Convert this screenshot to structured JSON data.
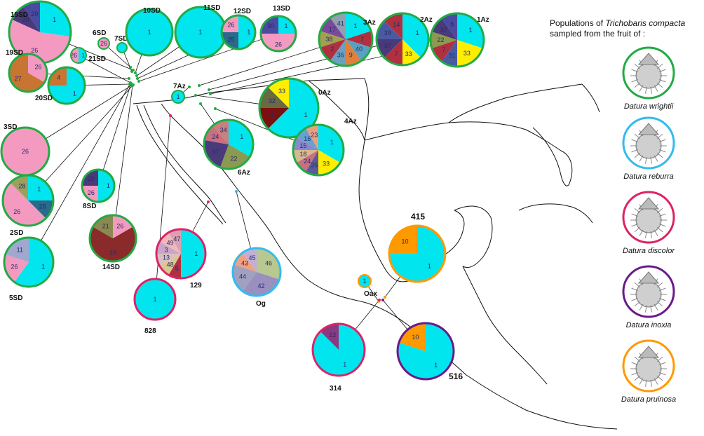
{
  "legend": {
    "title_prefix": "Populations of",
    "title_species": "Trichobaris compacta",
    "title_suffix": "sampled from the fruit of :",
    "hosts": [
      {
        "name": "Datura wrightii",
        "color": "#22aa44"
      },
      {
        "name": "Datura  reburra",
        "color": "#33bbee"
      },
      {
        "name": "Datura  discolor",
        "color": "#dd2266"
      },
      {
        "name": "Datura  inoxia",
        "color": "#6a1a8a"
      },
      {
        "name": "Datura pruinosa",
        "color": "#ff9900"
      }
    ]
  },
  "haplotype_colors": {
    "1": "#00e5ee",
    "2": "#b03040",
    "3": "#c9a6c9",
    "4": "#c87533",
    "5": "#b03040",
    "6": "#7a1010",
    "7": "#b03040",
    "8": "#4a4aa0",
    "9": "#e0803a",
    "10": "#ff9900",
    "11": "#a0a8d0",
    "12": "#8a3a80",
    "13": "#d8c0c0",
    "14": "#b03040",
    "15": "#8888cc",
    "16": "#6aa0d0",
    "17": "#7a4a9a",
    "18": "#d8b890",
    "19": "#8b2a2a",
    "20": "#4a3a7a",
    "21": "#8a8a50",
    "22": "#8a9a50",
    "23": "#e8a080",
    "24": "#c87080",
    "25": "#2a6a8a",
    "26": "#f49ac1",
    "27": "#c87533",
    "28": "#9aa060",
    "29": "#4a4aa0",
    "30": "#4a4aa0",
    "31": "#4a5aa0",
    "32": "#6a6a40",
    "33": "#ffee00",
    "34": "#c88080",
    "35": "#5a5a9a",
    "36": "#6aa0c0",
    "37": "#4a3a7a",
    "38": "#a0a050",
    "39": "#4a5aa0",
    "40": "#5aa0c0",
    "41": "#90a0b0",
    "42": "#9a90c0",
    "43": "#f0a080",
    "44": "#a0a0c0",
    "45": "#c0b0d8",
    "46": "#b8c890",
    "47": "#d8a0b0",
    "48": "#d8c890",
    "49": "#f0b8b8"
  },
  "populations": [
    {
      "id": "15SD",
      "host": "Datura wrightii",
      "haplotypes": [
        {
          "h": "1",
          "n": 3
        },
        {
          "h": "26",
          "n": 6
        },
        {
          "h": "20",
          "n": 1
        },
        {
          "h": "29",
          "n": 1
        }
      ]
    },
    {
      "id": "6SD",
      "host": "Datura wrightii",
      "haplotypes": [
        {
          "h": "26",
          "n": 1
        }
      ]
    },
    {
      "id": "7SD",
      "host": "Datura wrightii",
      "haplotypes": [
        {
          "h": "1",
          "n": 1
        }
      ]
    },
    {
      "id": "10SD",
      "host": "Datura wrightii",
      "haplotypes": [
        {
          "h": "1",
          "n": 1
        }
      ]
    },
    {
      "id": "11SD",
      "host": "Datura wrightii",
      "haplotypes": [
        {
          "h": "1",
          "n": 1
        }
      ]
    },
    {
      "id": "12SD",
      "host": "Datura wrightii",
      "haplotypes": [
        {
          "h": "1",
          "n": 2
        },
        {
          "h": "25",
          "n": 1
        },
        {
          "h": "26",
          "n": 1
        }
      ]
    },
    {
      "id": "13SD",
      "host": "Datura wrightii",
      "haplotypes": [
        {
          "h": "1",
          "n": 1
        },
        {
          "h": "26",
          "n": 2
        },
        {
          "h": "30",
          "n": 1
        }
      ]
    },
    {
      "id": "19SD",
      "host": "Datura wrightii",
      "haplotypes": [
        {
          "h": "26",
          "n": 1
        },
        {
          "h": "27",
          "n": 2
        }
      ]
    },
    {
      "id": "21SD",
      "host": "Datura wrightii",
      "haplotypes": [
        {
          "h": "1",
          "n": 1
        },
        {
          "h": "26",
          "n": 1
        }
      ]
    },
    {
      "id": "20SD",
      "host": "Datura wrightii",
      "haplotypes": [
        {
          "h": "1",
          "n": 3
        },
        {
          "h": "4",
          "n": 1
        }
      ]
    },
    {
      "id": "3SD",
      "host": "Datura wrightii",
      "haplotypes": [
        {
          "h": "26",
          "n": 1
        }
      ]
    },
    {
      "id": "2SD",
      "host": "Datura wrightii",
      "haplotypes": [
        {
          "h": "1",
          "n": 2
        },
        {
          "h": "25",
          "n": 1
        },
        {
          "h": "26",
          "n": 4
        },
        {
          "h": "28",
          "n": 1
        }
      ]
    },
    {
      "id": "8SD",
      "host": "Datura wrightii",
      "haplotypes": [
        {
          "h": "1",
          "n": 2
        },
        {
          "h": "26",
          "n": 1
        },
        {
          "h": "20",
          "n": 1
        }
      ]
    },
    {
      "id": "5SD",
      "host": "Datura wrightii",
      "haplotypes": [
        {
          "h": "1",
          "n": 3
        },
        {
          "h": "26",
          "n": 1
        },
        {
          "h": "11",
          "n": 1
        }
      ]
    },
    {
      "id": "14SD",
      "host": "Datura wrightii",
      "haplotypes": [
        {
          "h": "26",
          "n": 1
        },
        {
          "h": "19",
          "n": 4
        },
        {
          "h": "21",
          "n": 1
        }
      ]
    },
    {
      "id": "3Az",
      "host": "Datura wrightii",
      "haplotypes": [
        {
          "h": "1",
          "n": 2
        },
        {
          "h": "7",
          "n": 1
        },
        {
          "h": "40",
          "n": 1
        },
        {
          "h": "9",
          "n": 1
        },
        {
          "h": "36",
          "n": 1
        },
        {
          "h": "2",
          "n": 1
        },
        {
          "h": "38",
          "n": 1
        },
        {
          "h": "17",
          "n": 1
        },
        {
          "h": "41",
          "n": 1
        }
      ]
    },
    {
      "id": "2Az",
      "host": "Datura wrightii",
      "haplotypes": [
        {
          "h": "1",
          "n": 3
        },
        {
          "h": "33",
          "n": 1
        },
        {
          "h": "7",
          "n": 1
        },
        {
          "h": "37",
          "n": 1
        },
        {
          "h": "39",
          "n": 1
        },
        {
          "h": "14",
          "n": 1
        }
      ]
    },
    {
      "id": "1Az",
      "host": "Datura wrightii",
      "haplotypes": [
        {
          "h": "1",
          "n": 3
        },
        {
          "h": "33",
          "n": 2
        },
        {
          "h": "31",
          "n": 1
        },
        {
          "h": "7",
          "n": 1
        },
        {
          "h": "22",
          "n": 1
        },
        {
          "h": "37",
          "n": 1
        },
        {
          "h": "8",
          "n": 1
        }
      ]
    },
    {
      "id": "7Az",
      "host": "Datura wrightii",
      "haplotypes": [
        {
          "h": "1",
          "n": 1
        }
      ]
    },
    {
      "id": "0Az",
      "host": "Datura wrightii",
      "haplotypes": [
        {
          "h": "1",
          "n": 5
        },
        {
          "h": "6",
          "n": 1
        },
        {
          "h": "32",
          "n": 1
        },
        {
          "h": "33",
          "n": 1
        }
      ]
    },
    {
      "id": "6Az",
      "host": "Datura wrightii",
      "haplotypes": [
        {
          "h": "1",
          "n": 3
        },
        {
          "h": "22",
          "n": 2
        },
        {
          "h": "37",
          "n": 2
        },
        {
          "h": "24",
          "n": 1
        },
        {
          "h": "34",
          "n": 1
        }
      ]
    },
    {
      "id": "4Az",
      "host": "Datura wrightii",
      "haplotypes": [
        {
          "h": "1",
          "n": 4
        },
        {
          "h": "33",
          "n": 2
        },
        {
          "h": "35",
          "n": 1
        },
        {
          "h": "24",
          "n": 1
        },
        {
          "h": "18",
          "n": 1
        },
        {
          "h": "15",
          "n": 1
        },
        {
          "h": "16",
          "n": 1
        },
        {
          "h": "23",
          "n": 1
        }
      ]
    },
    {
      "id": "828",
      "host": "Datura  discolor",
      "haplotypes": [
        {
          "h": "1",
          "n": 1
        }
      ]
    },
    {
      "id": "129",
      "host": "Datura  discolor",
      "haplotypes": [
        {
          "h": "1",
          "n": 6
        },
        {
          "h": "5",
          "n": 1
        },
        {
          "h": "48",
          "n": 1
        },
        {
          "h": "13",
          "n": 1
        },
        {
          "h": "3",
          "n": 1
        },
        {
          "h": "49",
          "n": 1
        },
        {
          "h": "47",
          "n": 1
        }
      ]
    },
    {
      "id": "Og",
      "host": "Datura  reburra",
      "haplotypes": [
        {
          "h": "46",
          "n": 3
        },
        {
          "h": "42",
          "n": 3
        },
        {
          "h": "44",
          "n": 2
        },
        {
          "h": "43",
          "n": 1
        },
        {
          "h": "45",
          "n": 1
        }
      ]
    },
    {
      "id": "415",
      "host": "Datura pruinosa",
      "haplotypes": [
        {
          "h": "1",
          "n": 3
        },
        {
          "h": "10",
          "n": 1
        }
      ]
    },
    {
      "id": "Oax",
      "host": "Datura pruinosa",
      "haplotypes": [
        {
          "h": "1",
          "n": 1
        }
      ]
    },
    {
      "id": "314",
      "host": "Datura  discolor",
      "haplotypes": [
        {
          "h": "1",
          "n": 7
        },
        {
          "h": "12",
          "n": 1
        }
      ]
    },
    {
      "id": "516",
      "host": "Datura  inoxia",
      "haplotypes": [
        {
          "h": "1",
          "n": 4
        },
        {
          "h": "10",
          "n": 1
        }
      ]
    }
  ]
}
